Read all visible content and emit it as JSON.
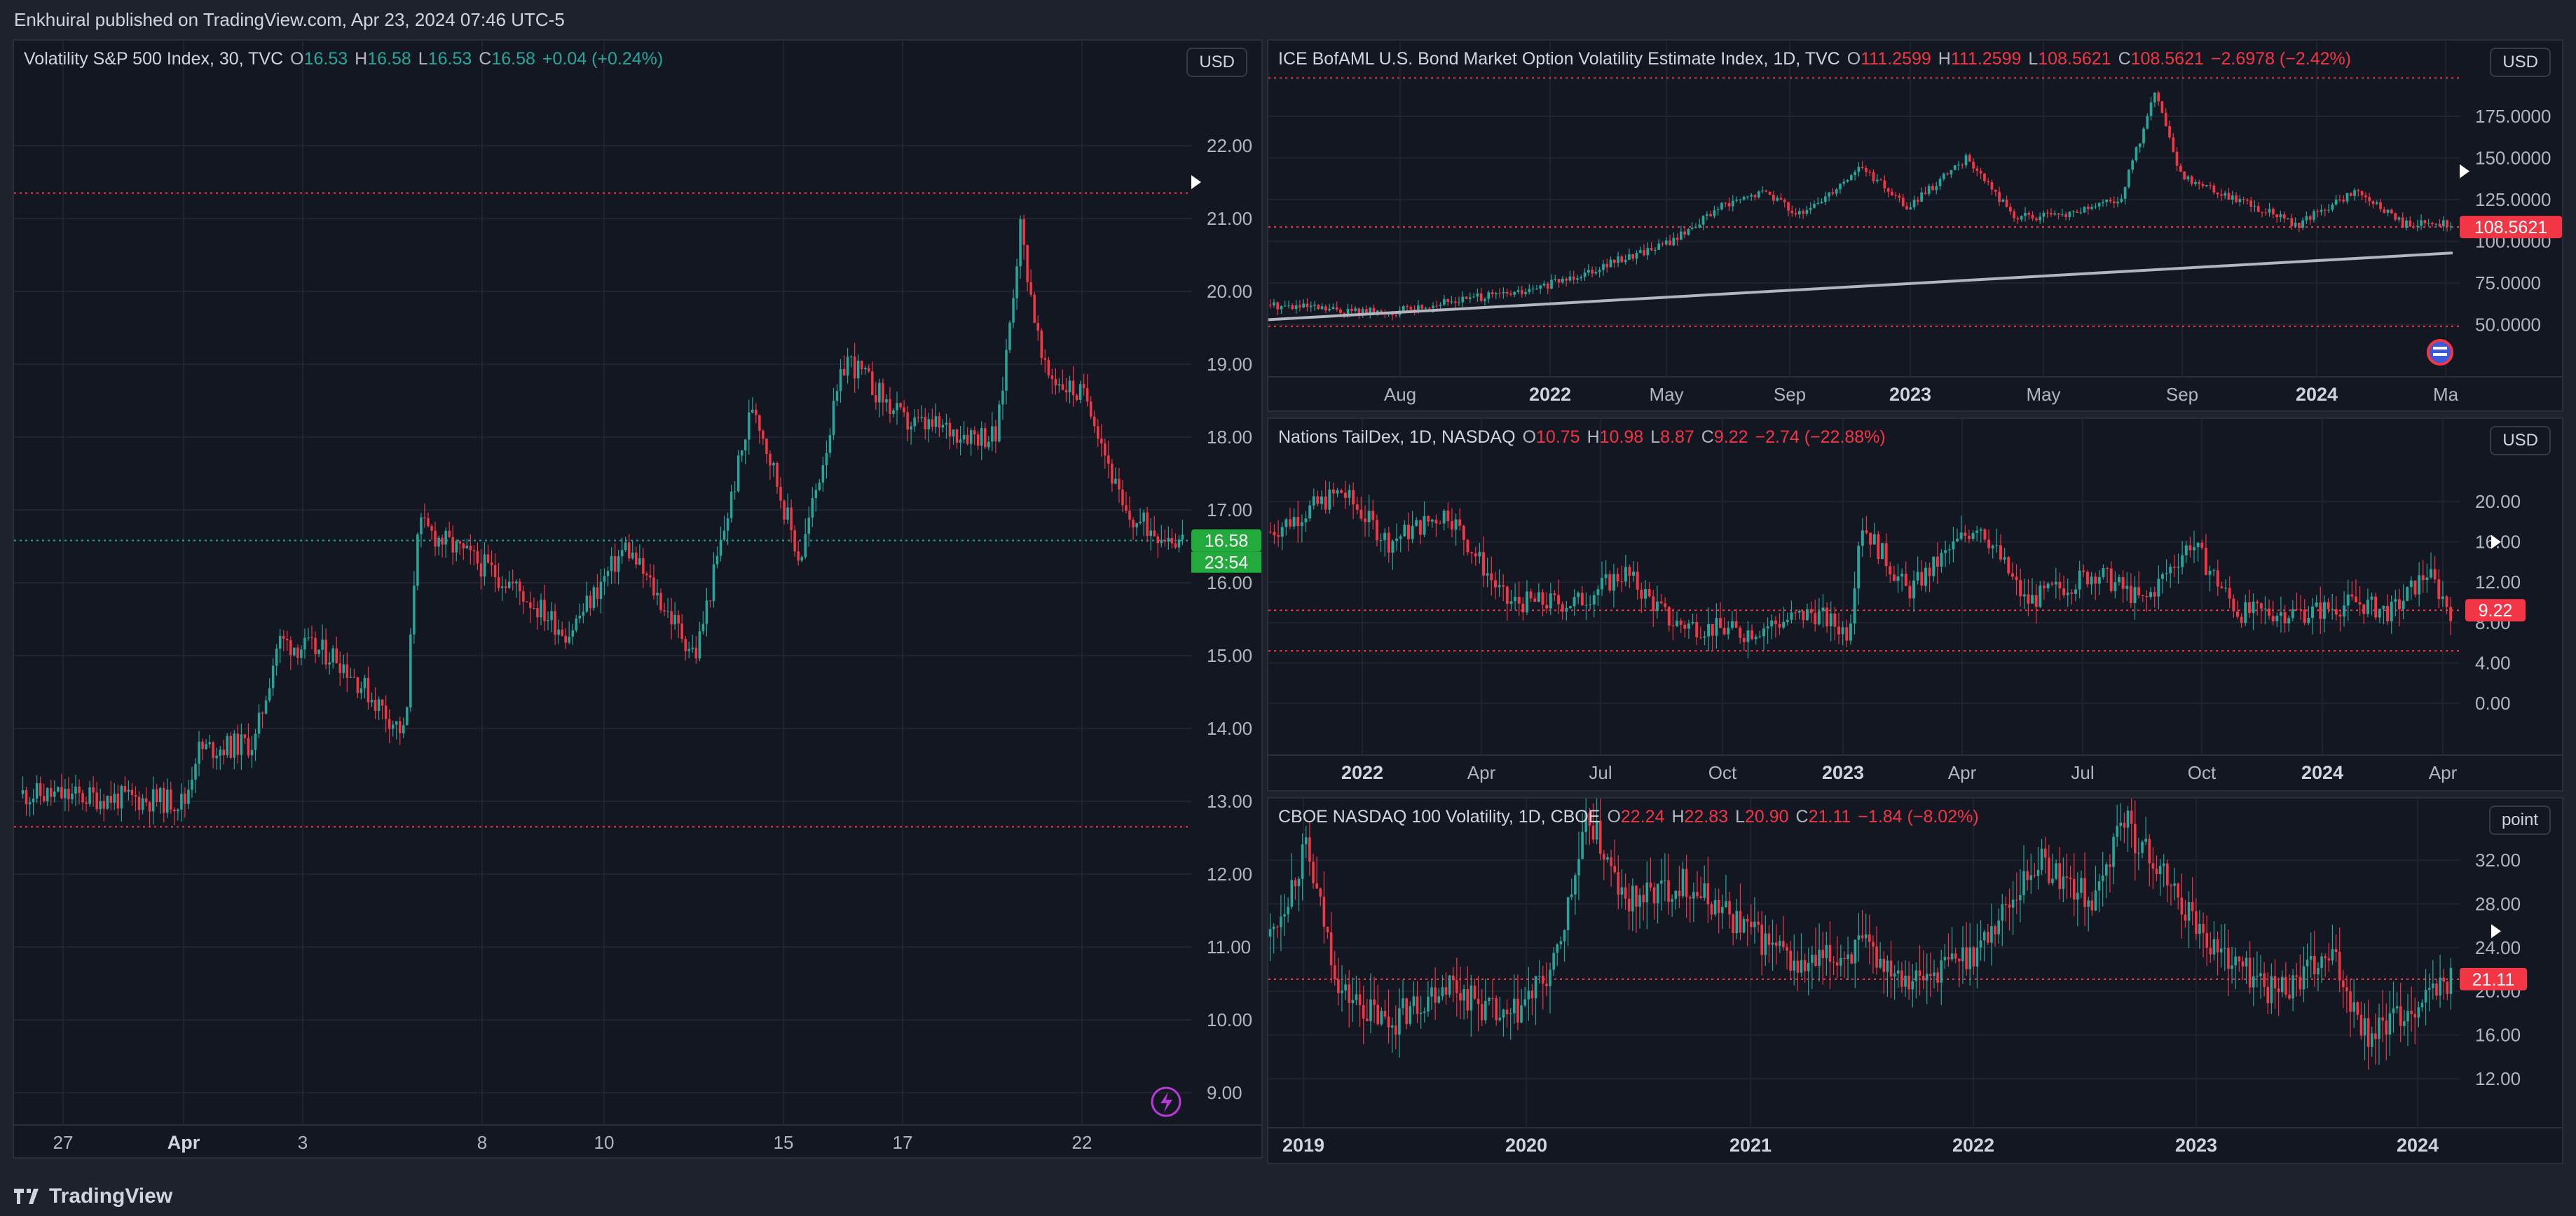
{
  "header": {
    "published_text": "Enkhuiral published on TradingView.com, Apr 23, 2024 07:46 UTC-5"
  },
  "footer": {
    "brand": "TradingView",
    "logo_icon": "tradingview-logo-icon"
  },
  "colors": {
    "bg": "#131722",
    "up": "#26a69a",
    "down": "#f23645",
    "grid": "#1f2330",
    "price_tag": "#22ab3c"
  },
  "panels": {
    "vix": {
      "title": "Volatility S&P 500 Index, 30, TVC",
      "o_label": "O",
      "o": "16.53",
      "h_label": "H",
      "h": "16.58",
      "l_label": "L",
      "l": "16.53",
      "c_label": "C",
      "c": "16.58",
      "change": "+0.04 (+0.24%)",
      "currency": "USD",
      "price_tag": "16.58",
      "countdown": "23:54",
      "y_ticks": [
        "22.00",
        "21.00",
        "20.00",
        "19.00",
        "18.00",
        "17.00",
        "16.00",
        "15.00",
        "14.00",
        "13.00",
        "12.00",
        "11.00",
        "10.00",
        "9.00"
      ],
      "x_ticks": [
        "27",
        "Apr",
        "3",
        "8",
        "10",
        "15",
        "17",
        "22"
      ],
      "bold_x_ticks": [
        "Apr"
      ],
      "alert_icon": "lightning-icon"
    },
    "move": {
      "title": "ICE BofAML U.S. Bond Market Option Volatility Estimate Index, 1D, TVC",
      "o_label": "O",
      "o": "111.2599",
      "h_label": "H",
      "h": "111.2599",
      "l_label": "L",
      "l": "108.5621",
      "c_label": "C",
      "c": "108.5621",
      "change": "−2.6978 (−2.42%)",
      "currency": "USD",
      "price_tag": "108.5621",
      "y_ticks": [
        "175.0000",
        "150.0000",
        "125.0000",
        "100.0000",
        "75.0000",
        "50.0000"
      ],
      "x_ticks": [
        "Aug",
        "2022",
        "May",
        "Sep",
        "2023",
        "May",
        "Sep",
        "2024",
        "Ma"
      ],
      "bold_x_ticks": [
        "2022",
        "2023",
        "2024"
      ],
      "flag_icon": "us-flag-icon"
    },
    "tail": {
      "title": "Nations TailDex, 1D, NASDAQ",
      "o_label": "O",
      "o": "10.75",
      "h_label": "H",
      "h": "10.98",
      "l_label": "L",
      "l": "8.87",
      "c_label": "C",
      "c": "9.22",
      "change": "−2.74 (−22.88%)",
      "currency": "USD",
      "price_tag": "9.22",
      "y_ticks": [
        "20.00",
        "16.00",
        "12.00",
        "8.00",
        "4.00",
        "0.00"
      ],
      "x_ticks": [
        "2022",
        "Apr",
        "Jul",
        "Oct",
        "2023",
        "Apr",
        "Jul",
        "Oct",
        "2024",
        "Apr"
      ],
      "bold_x_ticks": [
        "2022",
        "2023",
        "2024"
      ]
    },
    "vxn": {
      "title": "CBOE NASDAQ 100 Volatility, 1D, CBOE",
      "o_label": "O",
      "o": "22.24",
      "h_label": "H",
      "h": "22.83",
      "l_label": "L",
      "l": "20.90",
      "c_label": "C",
      "c": "21.11",
      "change": "−1.84 (−8.02%)",
      "currency": "point",
      "price_tag": "21.11",
      "y_ticks": [
        "32.00",
        "28.00",
        "24.00",
        "20.00",
        "16.00",
        "12.00"
      ],
      "x_ticks": [
        "2019",
        "2020",
        "2021",
        "2022",
        "2023",
        "2024"
      ],
      "bold_x_ticks": [
        "2019",
        "2020",
        "2021",
        "2022",
        "2023",
        "2024"
      ]
    }
  }
}
